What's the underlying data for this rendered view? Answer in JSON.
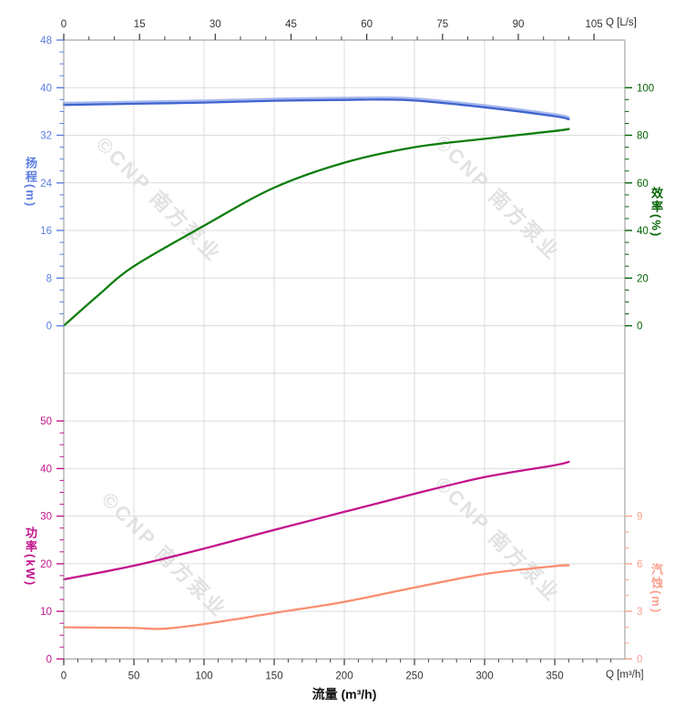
{
  "watermark": {
    "text": "©CNP 南方泵业"
  },
  "chart_data": {
    "type": "line",
    "grid": true,
    "x": {
      "top_axis": {
        "unit": "Q [L/s]",
        "ticks": [
          0,
          15,
          30,
          45,
          60,
          75,
          90,
          105
        ],
        "minor_step": 5,
        "range_Ls": [
          0,
          111.1
        ]
      },
      "bottom_axis": {
        "unit": "Q [m³/h]",
        "title": "流量 (m³/h)",
        "ticks": [
          0,
          50,
          100,
          150,
          200,
          250,
          300,
          350
        ],
        "minor_step": 10,
        "range_m3h": [
          0,
          400
        ]
      }
    },
    "panels": [
      {
        "name": "head-efficiency",
        "y_left": {
          "label": "扬程(m)",
          "ticks": [
            48,
            40,
            32,
            24,
            16,
            8,
            0
          ],
          "minor_step": 2,
          "range": [
            0,
            48
          ],
          "color": "#5b7de0"
        },
        "y_right": {
          "label": "效率(%)",
          "ticks": [
            100,
            80,
            60,
            40,
            20,
            0
          ],
          "minor_step": 5,
          "range": [
            0,
            100
          ],
          "color": "#046404"
        },
        "series": [
          {
            "name": "扬程",
            "axis": "head",
            "color": "#4064cf",
            "highlight_color": "#9cb1ec",
            "x": [
              0,
              50,
              100,
              150,
              200,
              225,
              250,
              300,
              350,
              360
            ],
            "y": [
              37.1,
              37.3,
              37.5,
              37.8,
              37.95,
              38.0,
              37.85,
              36.7,
              35.2,
              34.7
            ]
          },
          {
            "name": "效率",
            "axis": "efficiency",
            "color": "#0c7d0c",
            "x": [
              0,
              25,
              50,
              100,
              150,
              200,
              250,
              300,
              350,
              360
            ],
            "y": [
              0,
              13,
              25,
              42,
              58,
              68.5,
              75,
              78.5,
              81.8,
              82.6
            ]
          }
        ]
      },
      {
        "name": "power-npsh",
        "y_left": {
          "label": "功率(kW)",
          "ticks": [
            50,
            40,
            30,
            20,
            10,
            0
          ],
          "minor_step": 2.5,
          "range": [
            0,
            50
          ],
          "color": "#c3138c"
        },
        "y_right": {
          "label": "汽蚀(m)",
          "ticks": [
            9,
            6,
            3,
            0
          ],
          "minor_step": 1,
          "range": [
            0,
            9
          ],
          "color": "#f9a18e"
        },
        "series": [
          {
            "name": "功率",
            "axis": "power",
            "color": "#c3138c",
            "x": [
              0,
              50,
              100,
              150,
              200,
              250,
              300,
              350,
              360
            ],
            "y": [
              16.7,
              19.6,
              23.2,
              27.1,
              30.9,
              34.7,
              38.2,
              40.7,
              41.4
            ]
          },
          {
            "name": "汽蚀",
            "axis": "npsh",
            "color": "#fa8e70",
            "x": [
              0,
              50,
              70,
              100,
              150,
              200,
              250,
              300,
              350,
              360
            ],
            "y": [
              2.0,
              1.95,
              1.9,
              2.2,
              2.9,
              3.6,
              4.5,
              5.35,
              5.85,
              5.9
            ]
          }
        ]
      }
    ]
  },
  "colors": {
    "grid": "#dcdcdc",
    "frame": "#a5a5a5",
    "x_tick": "#444444",
    "x_text": "#333333"
  }
}
